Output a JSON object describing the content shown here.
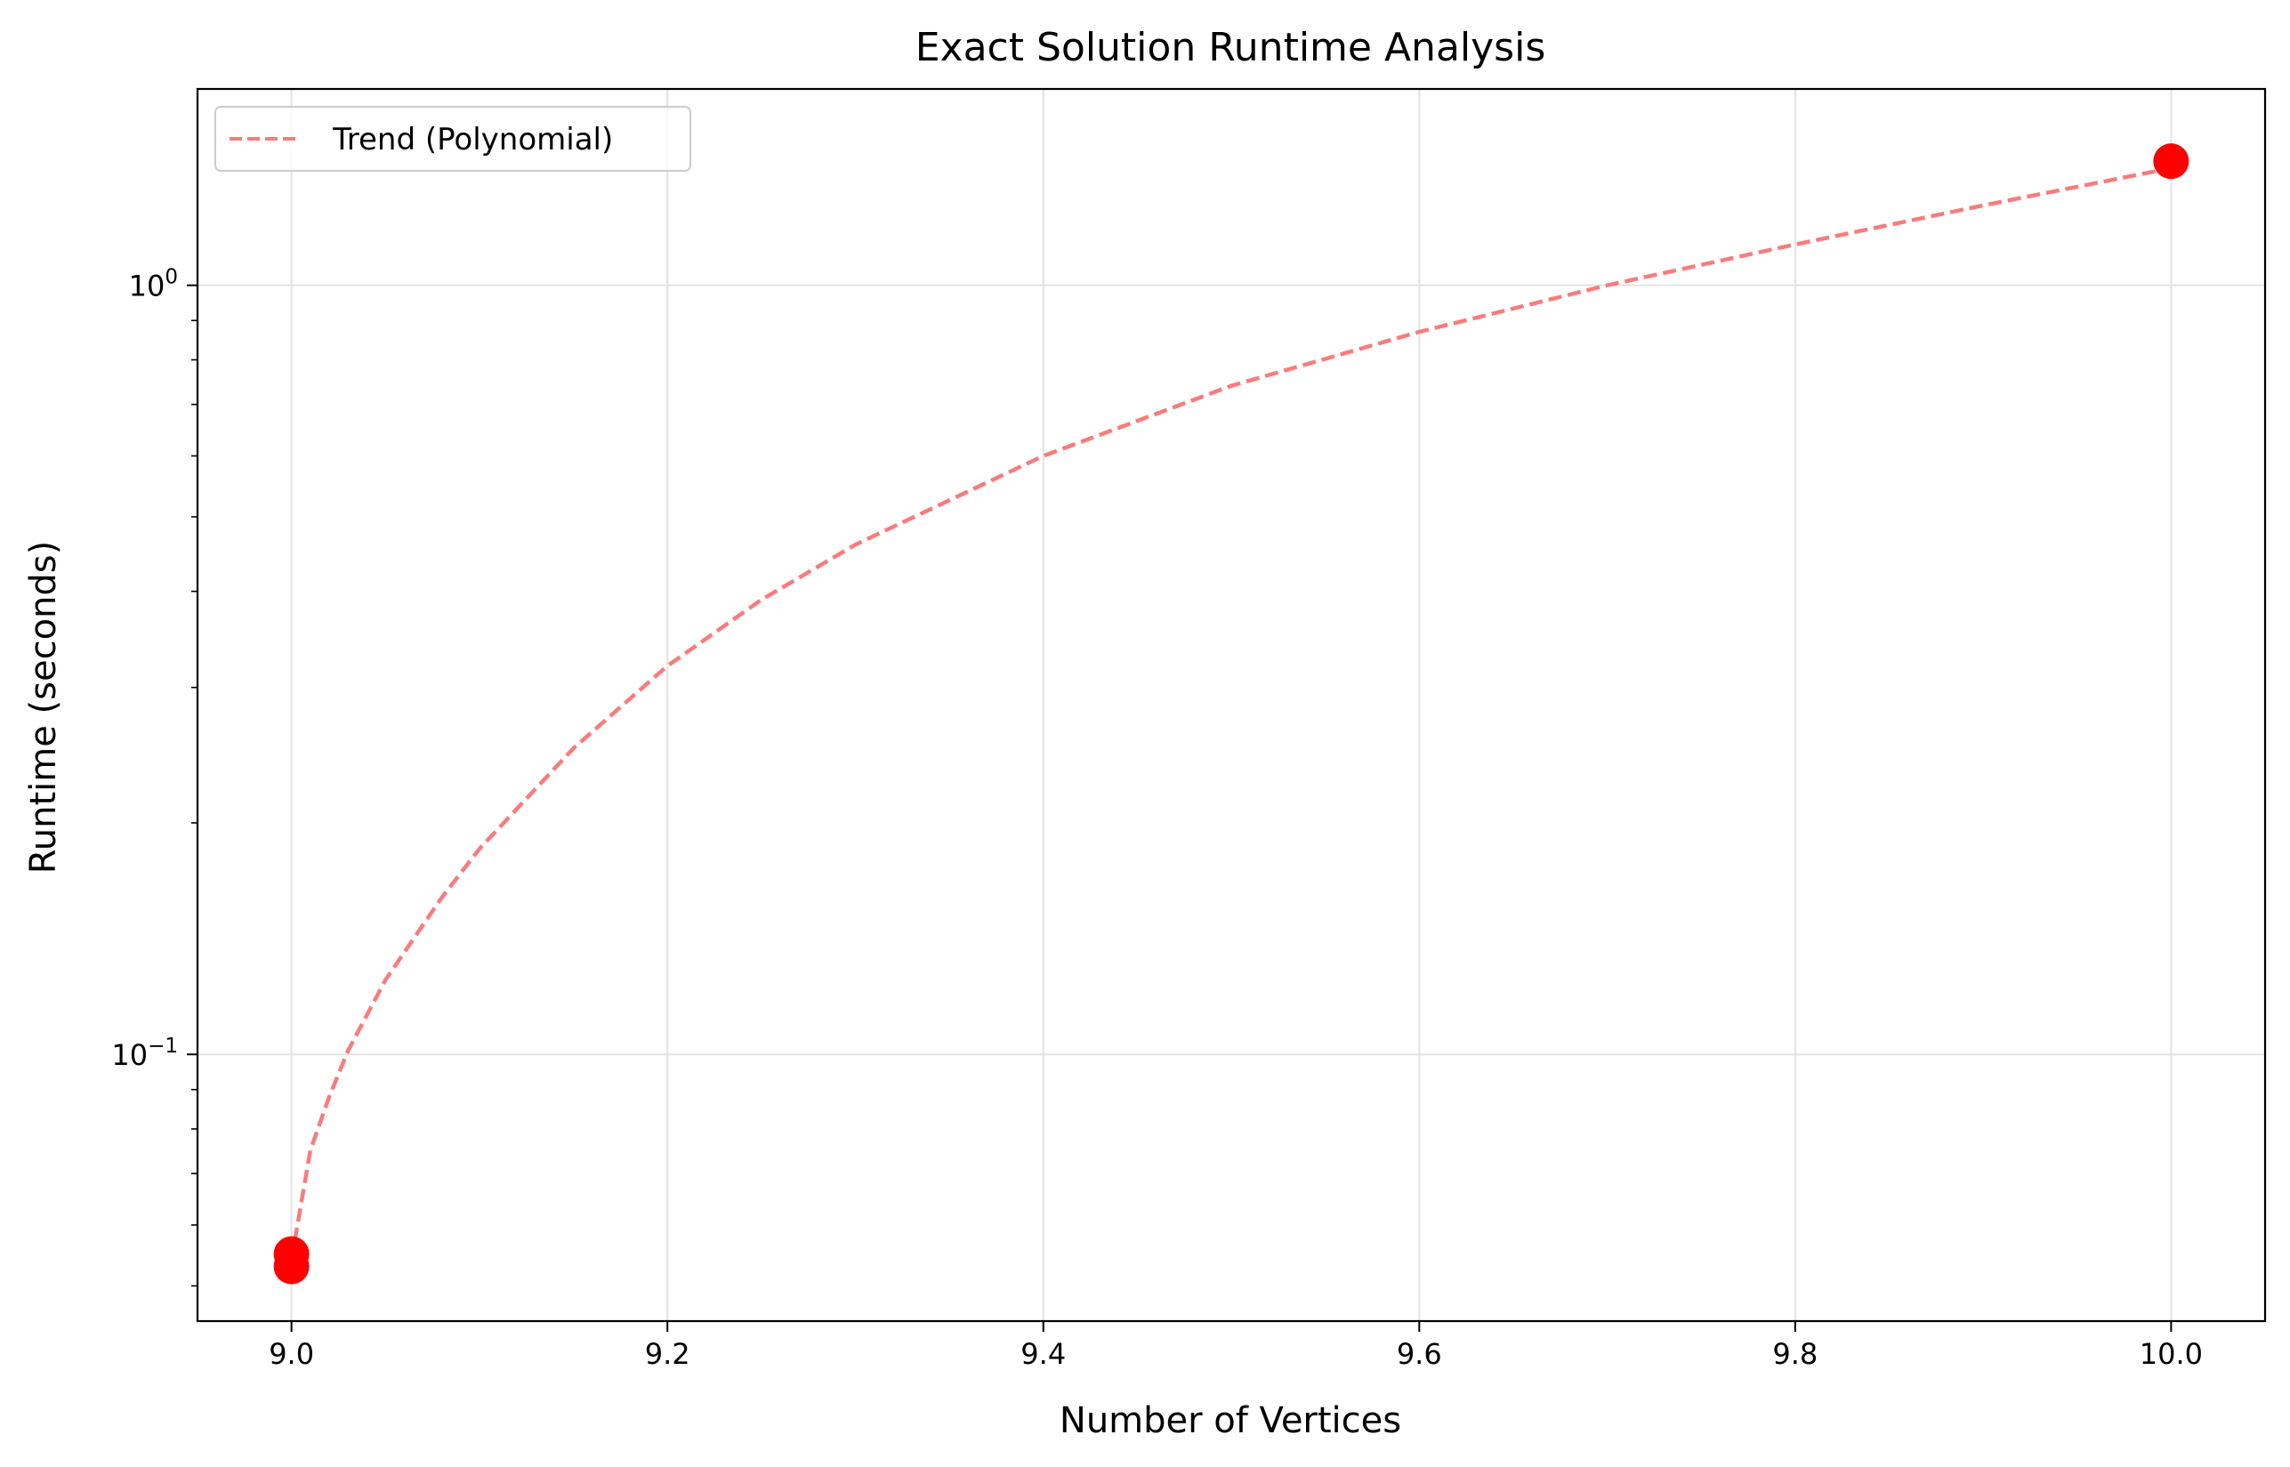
{
  "chart_data": {
    "type": "scatter",
    "title": "Exact Solution Runtime Analysis",
    "xlabel": "Number of Vertices",
    "ylabel": "Runtime (seconds)",
    "xlim": [
      8.95,
      10.05
    ],
    "ylim": [
      0.045,
      1.8
    ],
    "yscale": "log",
    "grid": true,
    "legend_position": "top-left",
    "x_ticks": [
      {
        "value": 9.0,
        "label": "9.0"
      },
      {
        "value": 9.2,
        "label": "9.2"
      },
      {
        "value": 9.4,
        "label": "9.4"
      },
      {
        "value": 9.6,
        "label": "9.6"
      },
      {
        "value": 9.8,
        "label": "9.8"
      },
      {
        "value": 10.0,
        "label": "10.0"
      }
    ],
    "y_ticks": [
      {
        "value": 0.1,
        "base": "10",
        "exp": "−1"
      },
      {
        "value": 1.0,
        "base": "10",
        "exp": "0"
      }
    ],
    "y_minor_ticks": [
      0.05,
      0.06,
      0.07,
      0.08,
      0.09,
      0.2,
      0.3,
      0.4,
      0.5,
      0.6,
      0.7,
      0.8,
      0.9
    ],
    "points": [
      {
        "x": 9.0,
        "y": 0.053
      },
      {
        "x": 9.0,
        "y": 0.055
      },
      {
        "x": 10.0,
        "y": 1.45
      }
    ],
    "trend": {
      "name": "Trend (Polynomial)",
      "x": [
        9.0,
        9.01,
        9.02,
        9.03,
        9.05,
        9.08,
        9.1,
        9.15,
        9.2,
        9.25,
        9.3,
        9.4,
        9.5,
        9.6,
        9.7,
        9.8,
        9.9,
        10.0
      ],
      "y": [
        0.054,
        0.075,
        0.088,
        0.101,
        0.125,
        0.16,
        0.185,
        0.25,
        0.32,
        0.39,
        0.46,
        0.6,
        0.74,
        0.87,
        1.0,
        1.13,
        1.27,
        1.42
      ]
    },
    "colors": {
      "points": "#ff0000",
      "trend": "#f87c7c",
      "grid": "#e3e3e3",
      "axes": "#000000"
    }
  }
}
